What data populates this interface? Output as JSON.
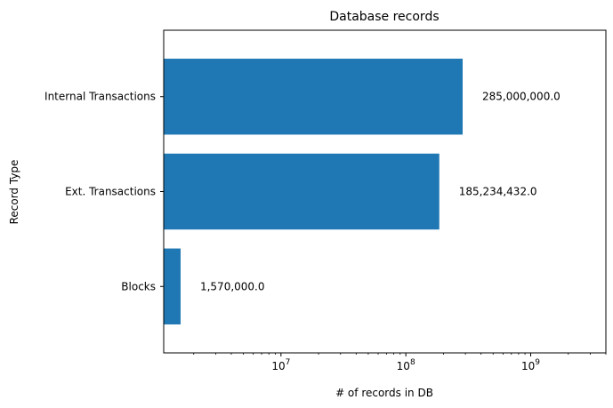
{
  "chart_data": {
    "type": "bar",
    "orientation": "horizontal",
    "title": "Database records",
    "xlabel": "# of records in DB",
    "ylabel": "Record Type",
    "x_scale": "log",
    "xlim": [
      1150000,
      4000000000
    ],
    "x_major_ticks": [
      {
        "value": 10000000,
        "base": "10",
        "exp": "7"
      },
      {
        "value": 100000000,
        "base": "10",
        "exp": "8"
      },
      {
        "value": 1000000000,
        "base": "10",
        "exp": "9"
      }
    ],
    "categories": [
      "Internal Transactions",
      "Ext. Transactions",
      "Blocks"
    ],
    "values": [
      285000000,
      185234432,
      1570000
    ],
    "data_labels": [
      "285,000,000.0",
      "185,234,432.0",
      "1,570,000.0"
    ],
    "bar_color": "#1f77b4",
    "grid": false,
    "legend": "none"
  }
}
